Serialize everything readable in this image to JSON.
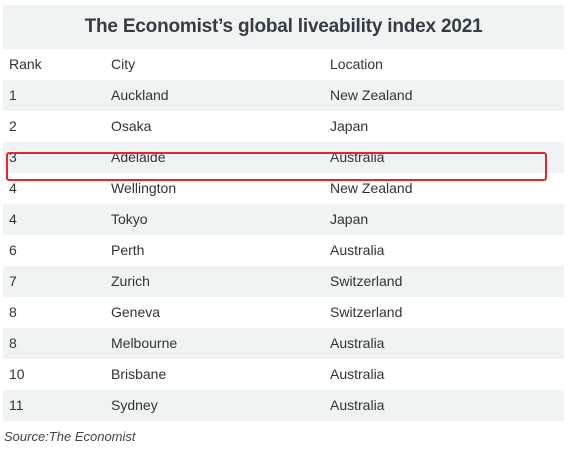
{
  "title": "The Economist’s global liveability index 2021",
  "headers": {
    "rank": "Rank",
    "city": "City",
    "location": "Location"
  },
  "rows": [
    {
      "rank": "1",
      "city": "Auckland",
      "location": "New Zealand"
    },
    {
      "rank": "2",
      "city": "Osaka",
      "location": "Japan"
    },
    {
      "rank": "3",
      "city": "Adelaide",
      "location": "Australia"
    },
    {
      "rank": "4",
      "city": "Wellington",
      "location": "New Zealand"
    },
    {
      "rank": "4",
      "city": "Tokyo",
      "location": "Japan"
    },
    {
      "rank": "6",
      "city": "Perth",
      "location": "Australia"
    },
    {
      "rank": "7",
      "city": "Zurich",
      "location": "Switzerland"
    },
    {
      "rank": "8",
      "city": "Geneva",
      "location": "Switzerland"
    },
    {
      "rank": "8",
      "city": "Melbourne",
      "location": "Australia"
    },
    {
      "rank": "10",
      "city": "Brisbane",
      "location": "Australia"
    },
    {
      "rank": "11",
      "city": "Sydney",
      "location": "Australia"
    }
  ],
  "highlight_color": "#e3262b",
  "source": "Source:The Economist"
}
